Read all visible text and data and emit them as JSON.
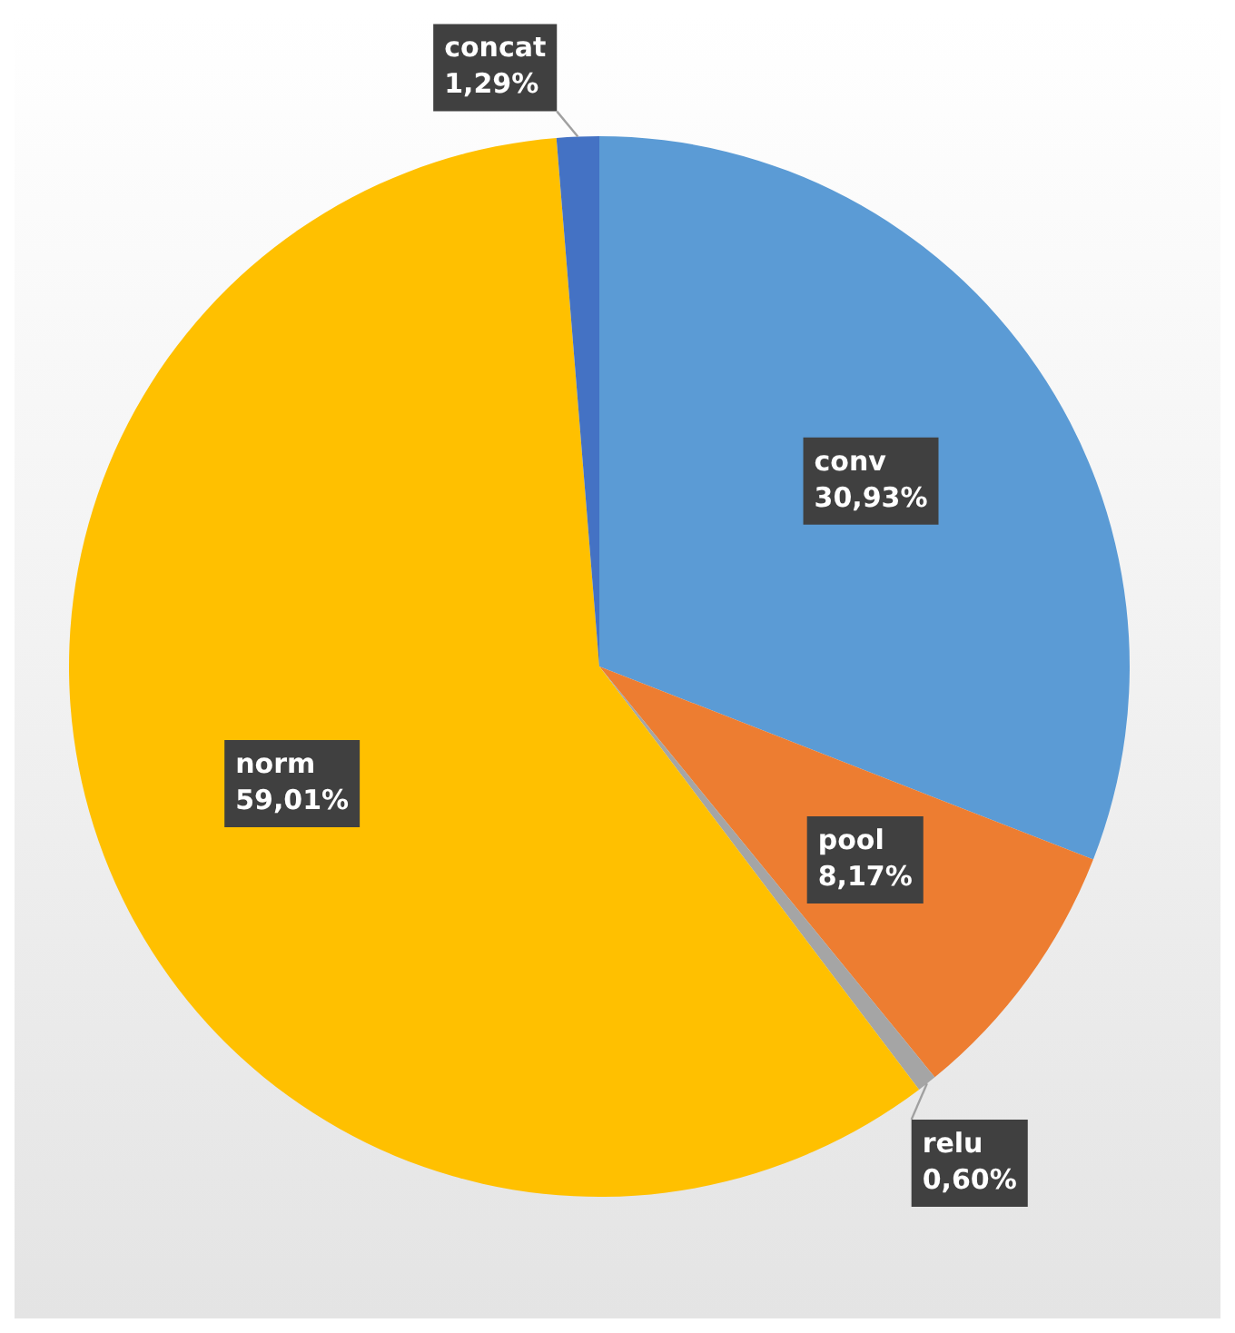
{
  "chart_data": {
    "type": "pie",
    "categories": [
      "conv",
      "pool",
      "relu",
      "norm",
      "concat"
    ],
    "values": [
      30.93,
      8.17,
      0.6,
      59.01,
      1.29
    ],
    "colors": [
      "#5b9bd5",
      "#ed7d31",
      "#a5a5a5",
      "#ffc000",
      "#4472c4"
    ],
    "value_labels": [
      "30,93%",
      "8,17%",
      "0,60%",
      "59,01%",
      "1,29%"
    ]
  }
}
